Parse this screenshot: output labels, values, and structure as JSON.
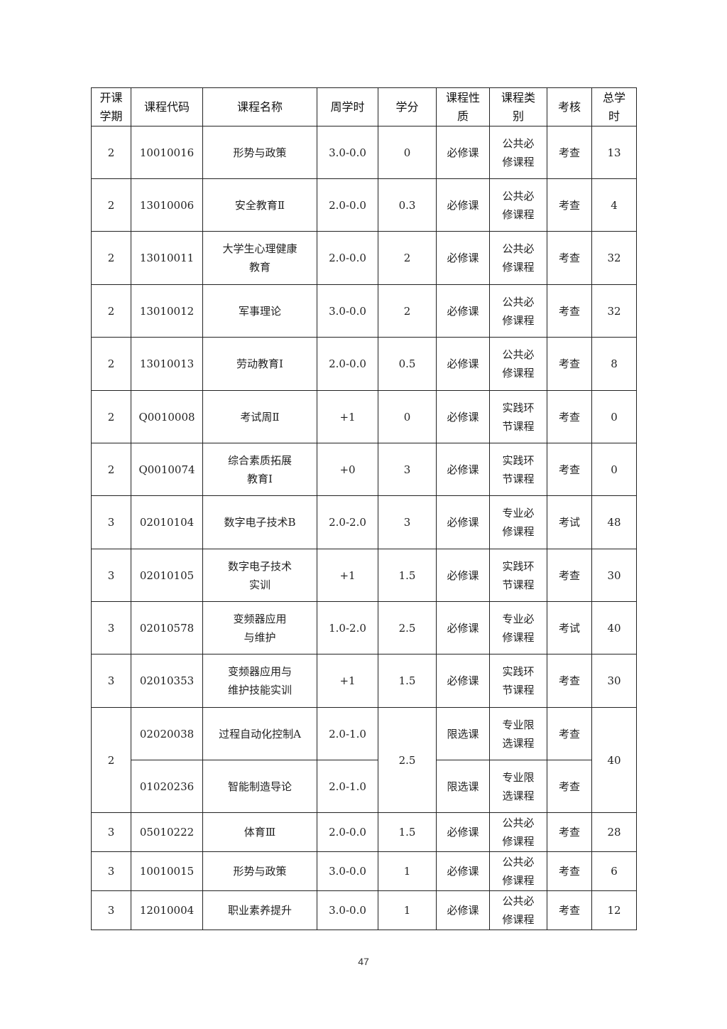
{
  "headers": [
    "开课\n学期",
    "课程代码",
    "课程名称",
    "周学时",
    "学分",
    "课程性\n质",
    "课程类\n别",
    "考核",
    "总学\n时"
  ],
  "rows": [
    [
      "2",
      "10010016",
      "形势与政策",
      "3.0-0.0",
      "0",
      "必修课",
      "公共必\n修课程",
      "考查",
      "13"
    ],
    [
      "2",
      "13010006",
      "安全教育Ⅱ",
      "2.0-0.0",
      "0.3",
      "必修课",
      "公共必\n修课程",
      "考查",
      "4"
    ],
    [
      "2",
      "13010011",
      "大学生心理健康\n教育",
      "2.0-0.0",
      "2",
      "必修课",
      "公共必\n修课程",
      "考查",
      "32"
    ],
    [
      "2",
      "13010012",
      "军事理论",
      "3.0-0.0",
      "2",
      "必修课",
      "公共必\n修课程",
      "考查",
      "32"
    ],
    [
      "2",
      "13010013",
      "劳动教育Ⅰ",
      "2.0-0.0",
      "0.5",
      "必修课",
      "公共必\n修课程",
      "考查",
      "8"
    ],
    [
      "2",
      "Q0010008",
      "考试周Ⅱ",
      "+1",
      "0",
      "必修课",
      "实践环\n节课程",
      "考查",
      "0"
    ],
    [
      "2",
      "Q0010074",
      "综合素质拓展\n教育Ⅰ",
      "+0",
      "3",
      "必修课",
      "实践环\n节课程",
      "考查",
      "0"
    ],
    [
      "3",
      "02010104",
      "数字电子技术B",
      "2.0-2.0",
      "3",
      "必修课",
      "专业必\n修课程",
      "考试",
      "48"
    ],
    [
      "3",
      "02010105",
      "数字电子技术\n实训",
      "+1",
      "1.5",
      "必修课",
      "实践环\n节课程",
      "考查",
      "30"
    ],
    [
      "3",
      "02010578",
      "变频器应用\n与维护",
      "1.0-2.0",
      "2.5",
      "必修课",
      "专业必\n修课程",
      "考试",
      "40"
    ],
    [
      "3",
      "02010353",
      "变频器应用与\n维护技能实训",
      "+1",
      "1.5",
      "必修课",
      "实践环\n节课程",
      "考查",
      "30"
    ],
    [
      "2",
      "02020038",
      "过程自动化控制A",
      "2.0-1.0",
      "2.5",
      "限选课",
      "专业限\n选课程",
      "考查",
      "40"
    ],
    [
      null,
      "01020236",
      "智能制造导论",
      "2.0-1.0",
      null,
      "限选课",
      "专业限\n选课程",
      "考查",
      null
    ],
    [
      "3",
      "05010222",
      "体育Ⅲ",
      "2.0-0.0",
      "1.5",
      "必修课",
      "公共必\n修课程",
      "考查",
      "28"
    ],
    [
      "3",
      "10010015",
      "形势与政策",
      "3.0-0.0",
      "1",
      "必修课",
      "公共必\n修课程",
      "考查",
      "6"
    ],
    [
      "3",
      "12010004",
      "职业素养提升",
      "3.0-0.0",
      "1",
      "必修课",
      "公共必\n修课程",
      "考查",
      "12"
    ]
  ],
  "page_number": "47"
}
